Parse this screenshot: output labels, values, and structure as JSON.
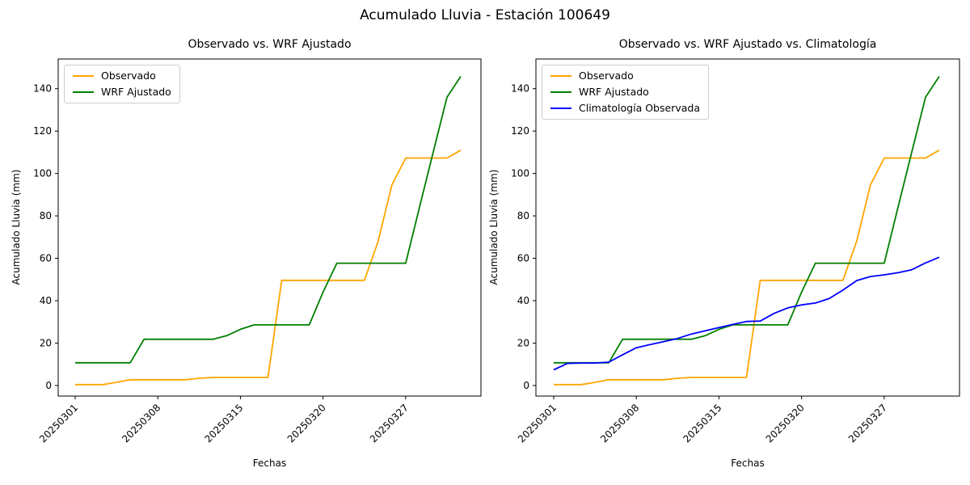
{
  "figure": {
    "suptitle": "Acumulado Lluvia - Estación 100649",
    "background": "#ffffff",
    "spine_color": "#000000"
  },
  "chart_data": {
    "type": "line",
    "suptitle": "Acumulado Lluvia - Estación 100649",
    "xlabel": "Fechas",
    "ylabel": "Acumulado Lluvia (mm)",
    "y_ticks": [
      0,
      20,
      40,
      60,
      80,
      100,
      120,
      140
    ],
    "ylim": [
      -5,
      154
    ],
    "grid": false,
    "legend_position": "upper-left",
    "n_points": 29,
    "x_tick_labels": [
      "20250301",
      "20250308",
      "20250315",
      "20250320",
      "20250327"
    ],
    "x_tick_indices": [
      0,
      6,
      12,
      18,
      24
    ],
    "series_defs": {
      "observado": {
        "name": "Observado",
        "color": "#FFA500",
        "values": [
          0.4,
          0.4,
          0.4,
          1.5,
          2.7,
          2.7,
          2.7,
          2.7,
          2.7,
          3.4,
          3.8,
          3.8,
          3.8,
          3.8,
          3.8,
          49.6,
          49.6,
          49.6,
          49.6,
          49.6,
          49.6,
          49.6,
          68,
          94.6,
          107.3,
          107.3,
          107.3,
          107.3,
          111
        ]
      },
      "wrf": {
        "name": "WRF Ajustado",
        "color": "#008000",
        "values": [
          10.7,
          10.7,
          10.7,
          10.7,
          10.7,
          21.8,
          21.8,
          21.8,
          21.8,
          21.8,
          21.8,
          23.5,
          26.5,
          28.6,
          28.6,
          28.6,
          28.6,
          28.6,
          44,
          57.7,
          57.7,
          57.7,
          57.7,
          57.7,
          57.7,
          84,
          110,
          136,
          145.8
        ]
      },
      "climatologia": {
        "name": "Climatología Observada",
        "color": "#0000FF",
        "values": [
          7.4,
          10.4,
          10.6,
          10.6,
          11,
          14.5,
          17.8,
          19.3,
          20.7,
          22.2,
          24.3,
          25.8,
          27.3,
          28.8,
          30.2,
          30.4,
          34,
          36.6,
          38,
          38.9,
          41,
          45,
          49.5,
          51.4,
          52.2,
          53.2,
          54.6,
          57.8,
          60.5
        ]
      }
    },
    "charts": [
      {
        "title": "Observado vs. WRF Ajustado",
        "series": [
          "observado",
          "wrf"
        ]
      },
      {
        "title": "Observado vs. WRF Ajustado vs. Climatología",
        "series": [
          "observado",
          "wrf",
          "climatologia"
        ]
      }
    ]
  }
}
